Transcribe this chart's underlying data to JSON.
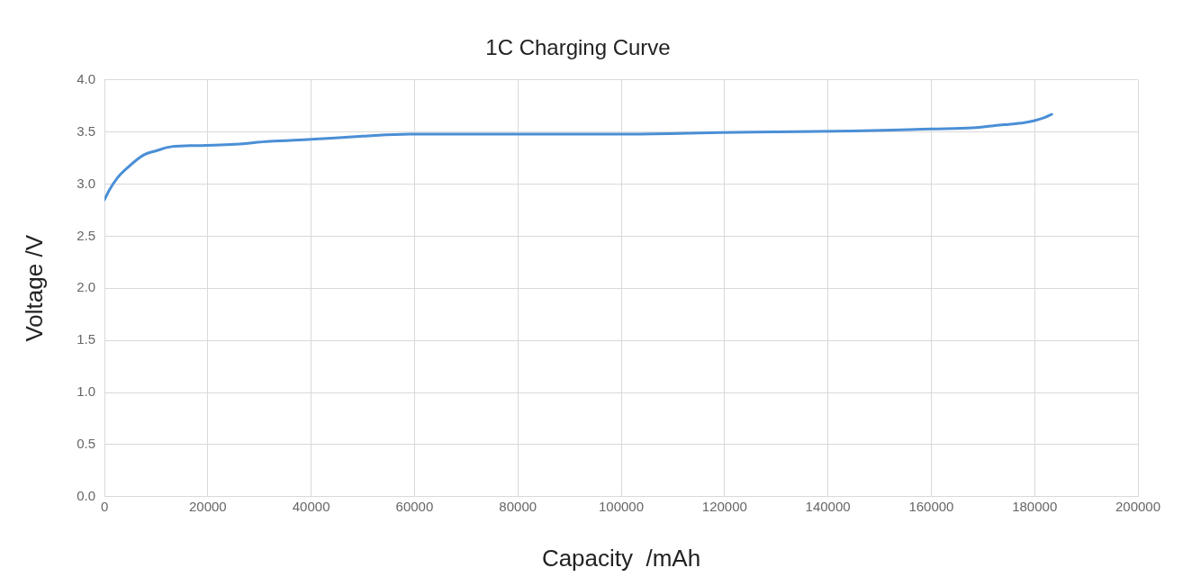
{
  "chart_data": {
    "type": "line",
    "title": "1C Charging Curve",
    "xlabel": "Capacity  /mAh",
    "ylabel": "Voltage /V",
    "x": [
      0,
      900,
      2500,
      4500,
      7600,
      10000,
      13000,
      18000,
      24500,
      32000,
      40000,
      50000,
      59000,
      80000,
      100000,
      115000,
      125600,
      145000,
      160000,
      168000,
      174000,
      178000,
      180000,
      182000,
      183300
    ],
    "series": [
      {
        "color": "#4a8fd6",
        "values": [
          2.85,
          2.94,
          3.06,
          3.16,
          3.28,
          3.32,
          3.36,
          3.37,
          3.38,
          3.41,
          3.43,
          3.46,
          3.48,
          3.48,
          3.48,
          3.49,
          3.5,
          3.51,
          3.53,
          3.54,
          3.57,
          3.59,
          3.61,
          3.64,
          3.67
        ]
      }
    ],
    "xlim": [
      0,
      200000
    ],
    "xticks": [
      0,
      20000,
      40000,
      60000,
      80000,
      100000,
      120000,
      140000,
      160000,
      180000,
      200000
    ],
    "ylim": [
      0,
      4
    ],
    "yticks": [
      {
        "value": 0,
        "label": "0.0"
      },
      {
        "value": 0.5,
        "label": "0.5"
      },
      {
        "value": 1,
        "label": "1.0"
      },
      {
        "value": 1.5,
        "label": "1.5"
      },
      {
        "value": 2,
        "label": "2.0"
      },
      {
        "value": 2.5,
        "label": "2.5"
      },
      {
        "value": 3,
        "label": "3.0"
      },
      {
        "value": 3.5,
        "label": "3.5"
      },
      {
        "value": 4,
        "label": "4.0"
      }
    ],
    "grid": true,
    "marker": "none",
    "line_style": "solid"
  }
}
